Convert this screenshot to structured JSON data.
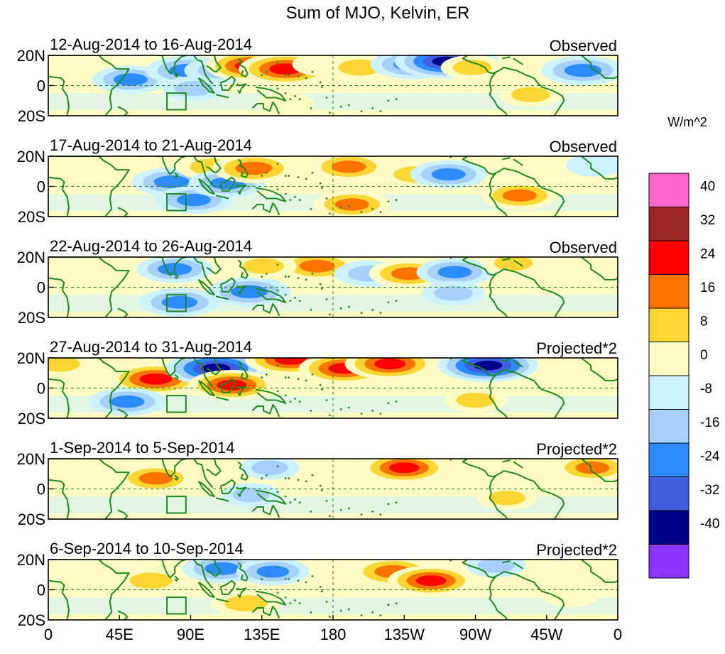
{
  "chart_data": {
    "type": "heatmap",
    "title": "Sum of MJO, Kelvin, ER",
    "xlabel": "",
    "ylabel": "",
    "x_ticks": [
      "0",
      "45E",
      "90E",
      "135E",
      "180",
      "135W",
      "90W",
      "45W",
      "0"
    ],
    "x_range": [
      0,
      360
    ],
    "y_ticks": [
      "20N",
      "0",
      "20S"
    ],
    "y_range": [
      -20,
      20
    ],
    "colorbar": {
      "units": "W/m^2",
      "levels": [
        40,
        32,
        24,
        16,
        8,
        0,
        -8,
        -16,
        -24,
        -32,
        -40
      ],
      "colors": [
        "#ff66c8",
        "#9c2626",
        "#ff0000",
        "#ff7300",
        "#ffd633",
        "#fffbc2",
        "#ccf2ff",
        "#a6d1ff",
        "#2d8cff",
        "#3f5fe0",
        "#00008b",
        "#8c33ff"
      ]
    },
    "panels": [
      {
        "period": "12-Aug-2014 to 16-Aug-2014",
        "status": "Observed",
        "features": [
          {
            "lon": 52,
            "lat": 4,
            "value": -20
          },
          {
            "lon": 88,
            "lat": 10,
            "value": -24
          },
          {
            "lon": 92,
            "lat": -2,
            "value": -12
          },
          {
            "lon": 108,
            "lat": 10,
            "value": -16
          },
          {
            "lon": 128,
            "lat": 13,
            "value": 28
          },
          {
            "lon": 150,
            "lat": 11,
            "value": 30
          },
          {
            "lon": 172,
            "lat": 14,
            "value": 8
          },
          {
            "lon": 197,
            "lat": 12,
            "value": 16
          },
          {
            "lon": 230,
            "lat": 14,
            "value": -24
          },
          {
            "lon": 252,
            "lat": 16,
            "value": -36
          },
          {
            "lon": 268,
            "lat": 12,
            "value": 12
          },
          {
            "lon": 305,
            "lat": -6,
            "value": 12
          },
          {
            "lon": 338,
            "lat": 10,
            "value": -24
          },
          {
            "lon": 150,
            "lat": -12,
            "value": 8
          }
        ]
      },
      {
        "period": "17-Aug-2014 to 21-Aug-2014",
        "status": "Observed",
        "features": [
          {
            "lon": 78,
            "lat": 3,
            "value": -22
          },
          {
            "lon": 92,
            "lat": -9,
            "value": -20
          },
          {
            "lon": 103,
            "lat": 13,
            "value": 16
          },
          {
            "lon": 113,
            "lat": 2,
            "value": -20
          },
          {
            "lon": 130,
            "lat": 12,
            "value": 24
          },
          {
            "lon": 190,
            "lat": 13,
            "value": 20
          },
          {
            "lon": 192,
            "lat": -12,
            "value": 20
          },
          {
            "lon": 232,
            "lat": 8,
            "value": 16
          },
          {
            "lon": 253,
            "lat": 8,
            "value": -20
          },
          {
            "lon": 298,
            "lat": -6,
            "value": 20
          },
          {
            "lon": 345,
            "lat": 14,
            "value": -8
          }
        ]
      },
      {
        "period": "22-Aug-2014 to 26-Aug-2014",
        "status": "Observed",
        "features": [
          {
            "lon": 80,
            "lat": 12,
            "value": -20
          },
          {
            "lon": 83,
            "lat": -10,
            "value": -22
          },
          {
            "lon": 127,
            "lat": -3,
            "value": -24
          },
          {
            "lon": 170,
            "lat": 14,
            "value": 22
          },
          {
            "lon": 136,
            "lat": 14,
            "value": 14
          },
          {
            "lon": 203,
            "lat": 9,
            "value": -16
          },
          {
            "lon": 228,
            "lat": 9,
            "value": 22
          },
          {
            "lon": 257,
            "lat": 10,
            "value": -20
          },
          {
            "lon": 256,
            "lat": -4,
            "value": -12
          },
          {
            "lon": 294,
            "lat": 16,
            "value": 12
          },
          {
            "lon": 345,
            "lat": 12,
            "value": 8
          }
        ]
      },
      {
        "period": "27-Aug-2014 to 31-Aug-2014",
        "status": "Projected*2",
        "features": [
          {
            "lon": 7,
            "lat": 16,
            "value": 14
          },
          {
            "lon": 68,
            "lat": 6,
            "value": 30
          },
          {
            "lon": 50,
            "lat": -9,
            "value": -20
          },
          {
            "lon": 106,
            "lat": 13,
            "value": -34
          },
          {
            "lon": 116,
            "lat": 2,
            "value": 26
          },
          {
            "lon": 153,
            "lat": 19,
            "value": 28
          },
          {
            "lon": 187,
            "lat": 13,
            "value": 28
          },
          {
            "lon": 216,
            "lat": 16,
            "value": 28
          },
          {
            "lon": 278,
            "lat": 15,
            "value": -34
          },
          {
            "lon": 270,
            "lat": -8,
            "value": 12
          },
          {
            "lon": 345,
            "lat": 12,
            "value": 8
          }
        ]
      },
      {
        "period": "1-Sep-2014 to 5-Sep-2014",
        "status": "Projected*2",
        "features": [
          {
            "lon": 68,
            "lat": 7,
            "value": 20
          },
          {
            "lon": 140,
            "lat": 14,
            "value": -10
          },
          {
            "lon": 128,
            "lat": -4,
            "value": -10
          },
          {
            "lon": 225,
            "lat": 14,
            "value": 26
          },
          {
            "lon": 344,
            "lat": 14,
            "value": 20
          },
          {
            "lon": 290,
            "lat": -6,
            "value": 10
          },
          {
            "lon": 30,
            "lat": 3,
            "value": 8
          }
        ]
      },
      {
        "period": "6-Sep-2014 to 10-Sep-2014",
        "status": "Projected*2",
        "features": [
          {
            "lon": 65,
            "lat": 6,
            "value": 16
          },
          {
            "lon": 110,
            "lat": 14,
            "value": -22
          },
          {
            "lon": 142,
            "lat": 12,
            "value": -18
          },
          {
            "lon": 125,
            "lat": -9,
            "value": 16
          },
          {
            "lon": 218,
            "lat": 12,
            "value": 24
          },
          {
            "lon": 242,
            "lat": 6,
            "value": 26
          },
          {
            "lon": 283,
            "lat": 16,
            "value": -10
          },
          {
            "lon": 330,
            "lat": -4,
            "value": 8
          }
        ]
      }
    ]
  }
}
